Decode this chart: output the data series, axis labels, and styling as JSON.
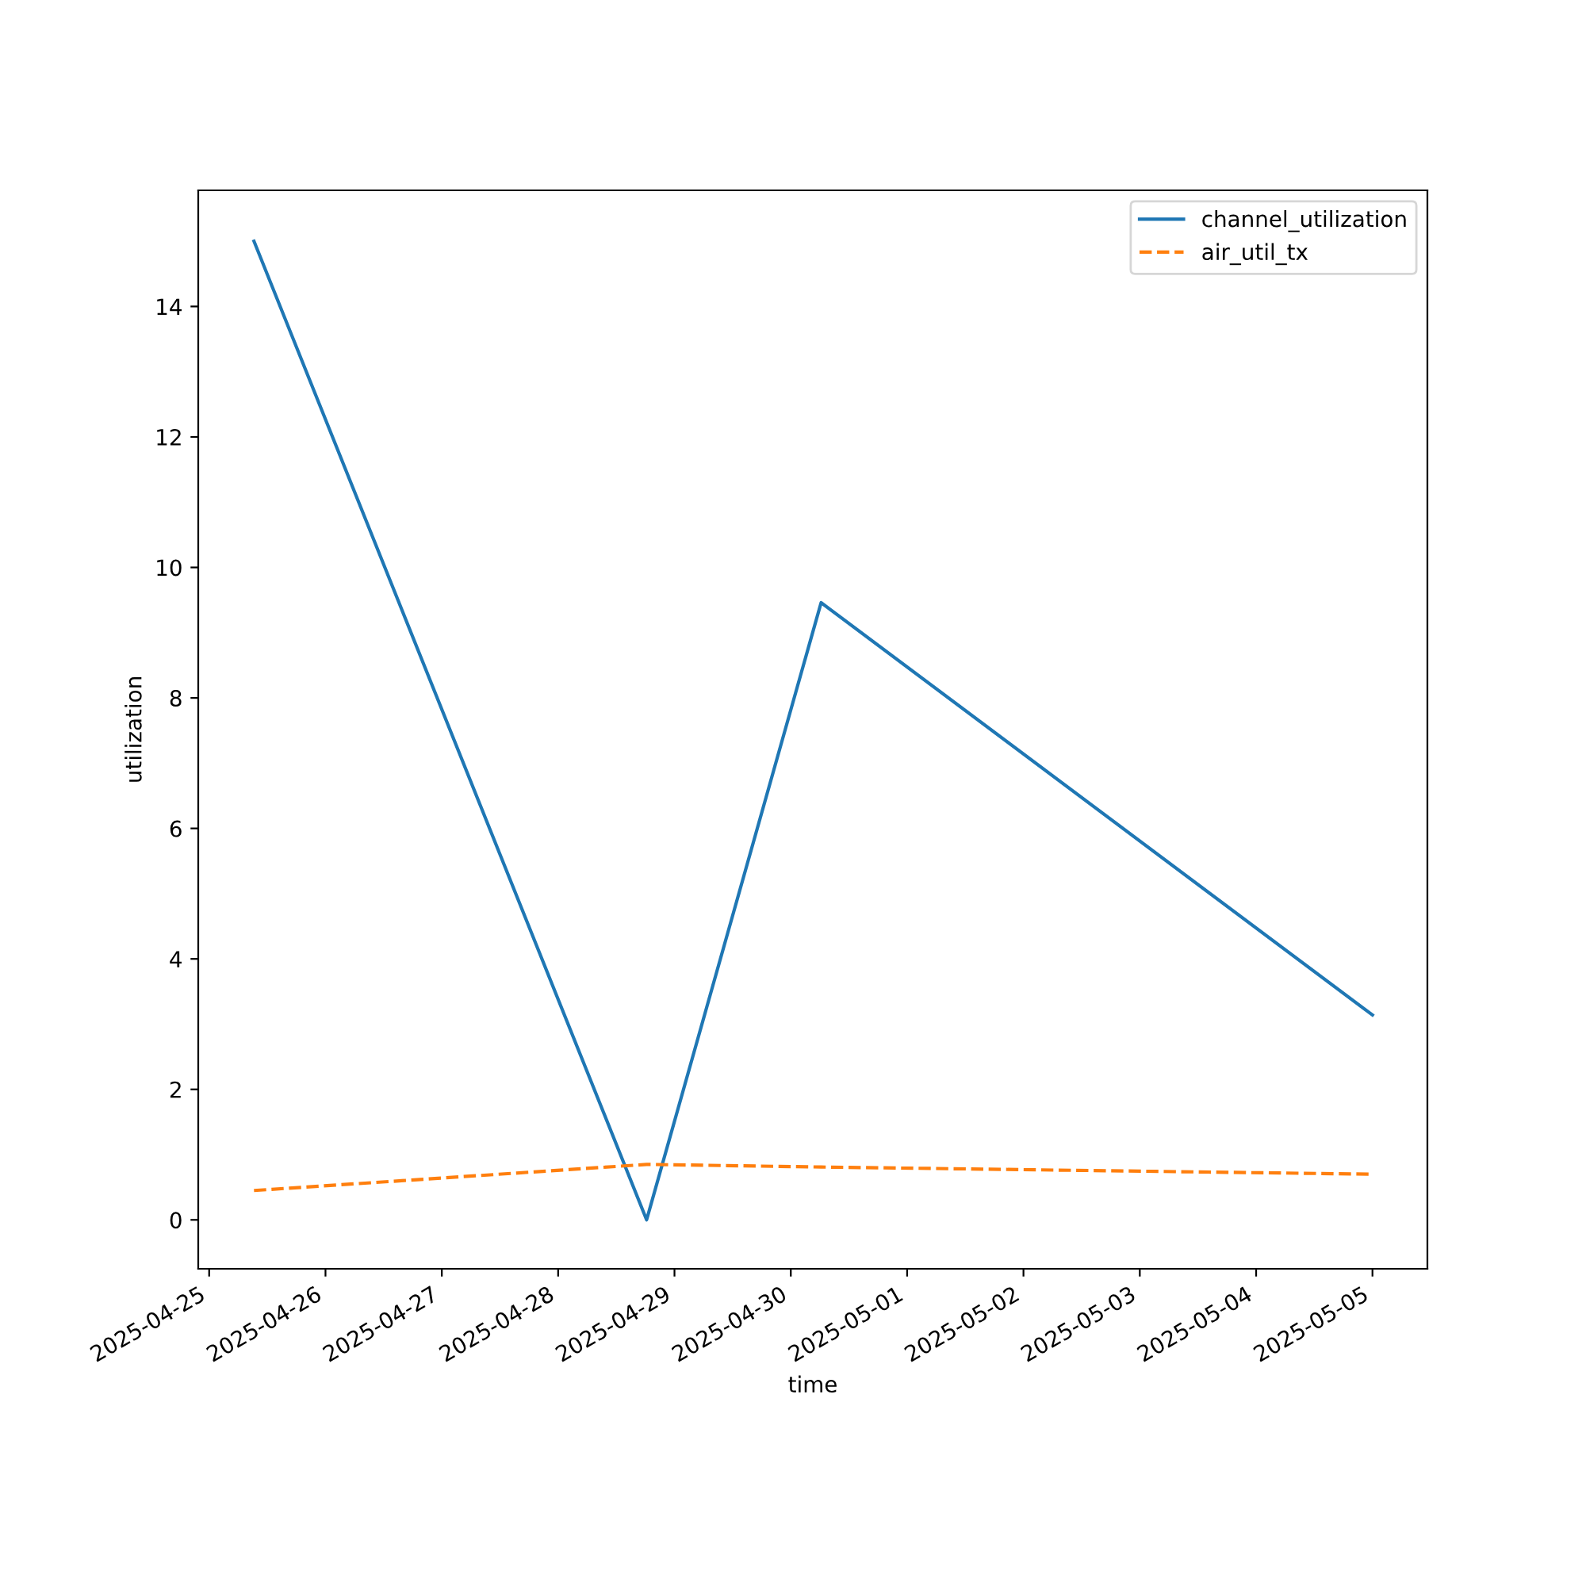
{
  "chart_data": {
    "type": "line",
    "xlabel": "time",
    "ylabel": "utilization",
    "series": [
      {
        "name": "channel_utilization",
        "color": "#1f77b4",
        "line_style": "solid",
        "x": [
          "2025-04-25T09:15",
          "2025-04-28T18:15",
          "2025-04-30T06:15",
          "2025-05-05T00:00"
        ],
        "values": [
          15.0,
          0.0,
          9.46,
          3.14
        ]
      },
      {
        "name": "air_util_tx",
        "color": "#ff7f0e",
        "line_style": "dashed",
        "x": [
          "2025-04-25T09:15",
          "2025-04-28T18:15",
          "2025-04-30T06:15",
          "2025-05-05T00:00"
        ],
        "values": [
          0.45,
          0.85,
          0.81,
          0.7
        ]
      }
    ],
    "xlim": [
      "2025-04-24T21:45",
      "2025-05-05T11:20"
    ],
    "xticks": [
      "2025-04-25",
      "2025-04-26",
      "2025-04-27",
      "2025-04-28",
      "2025-04-29",
      "2025-04-30",
      "2025-05-01",
      "2025-05-02",
      "2025-05-03",
      "2025-05-04",
      "2025-05-05"
    ],
    "ylim": [
      -0.75,
      15.78
    ],
    "yticks": [
      0,
      2,
      4,
      6,
      8,
      10,
      12,
      14
    ],
    "grid": false,
    "legend": "top right",
    "marker": "none"
  }
}
